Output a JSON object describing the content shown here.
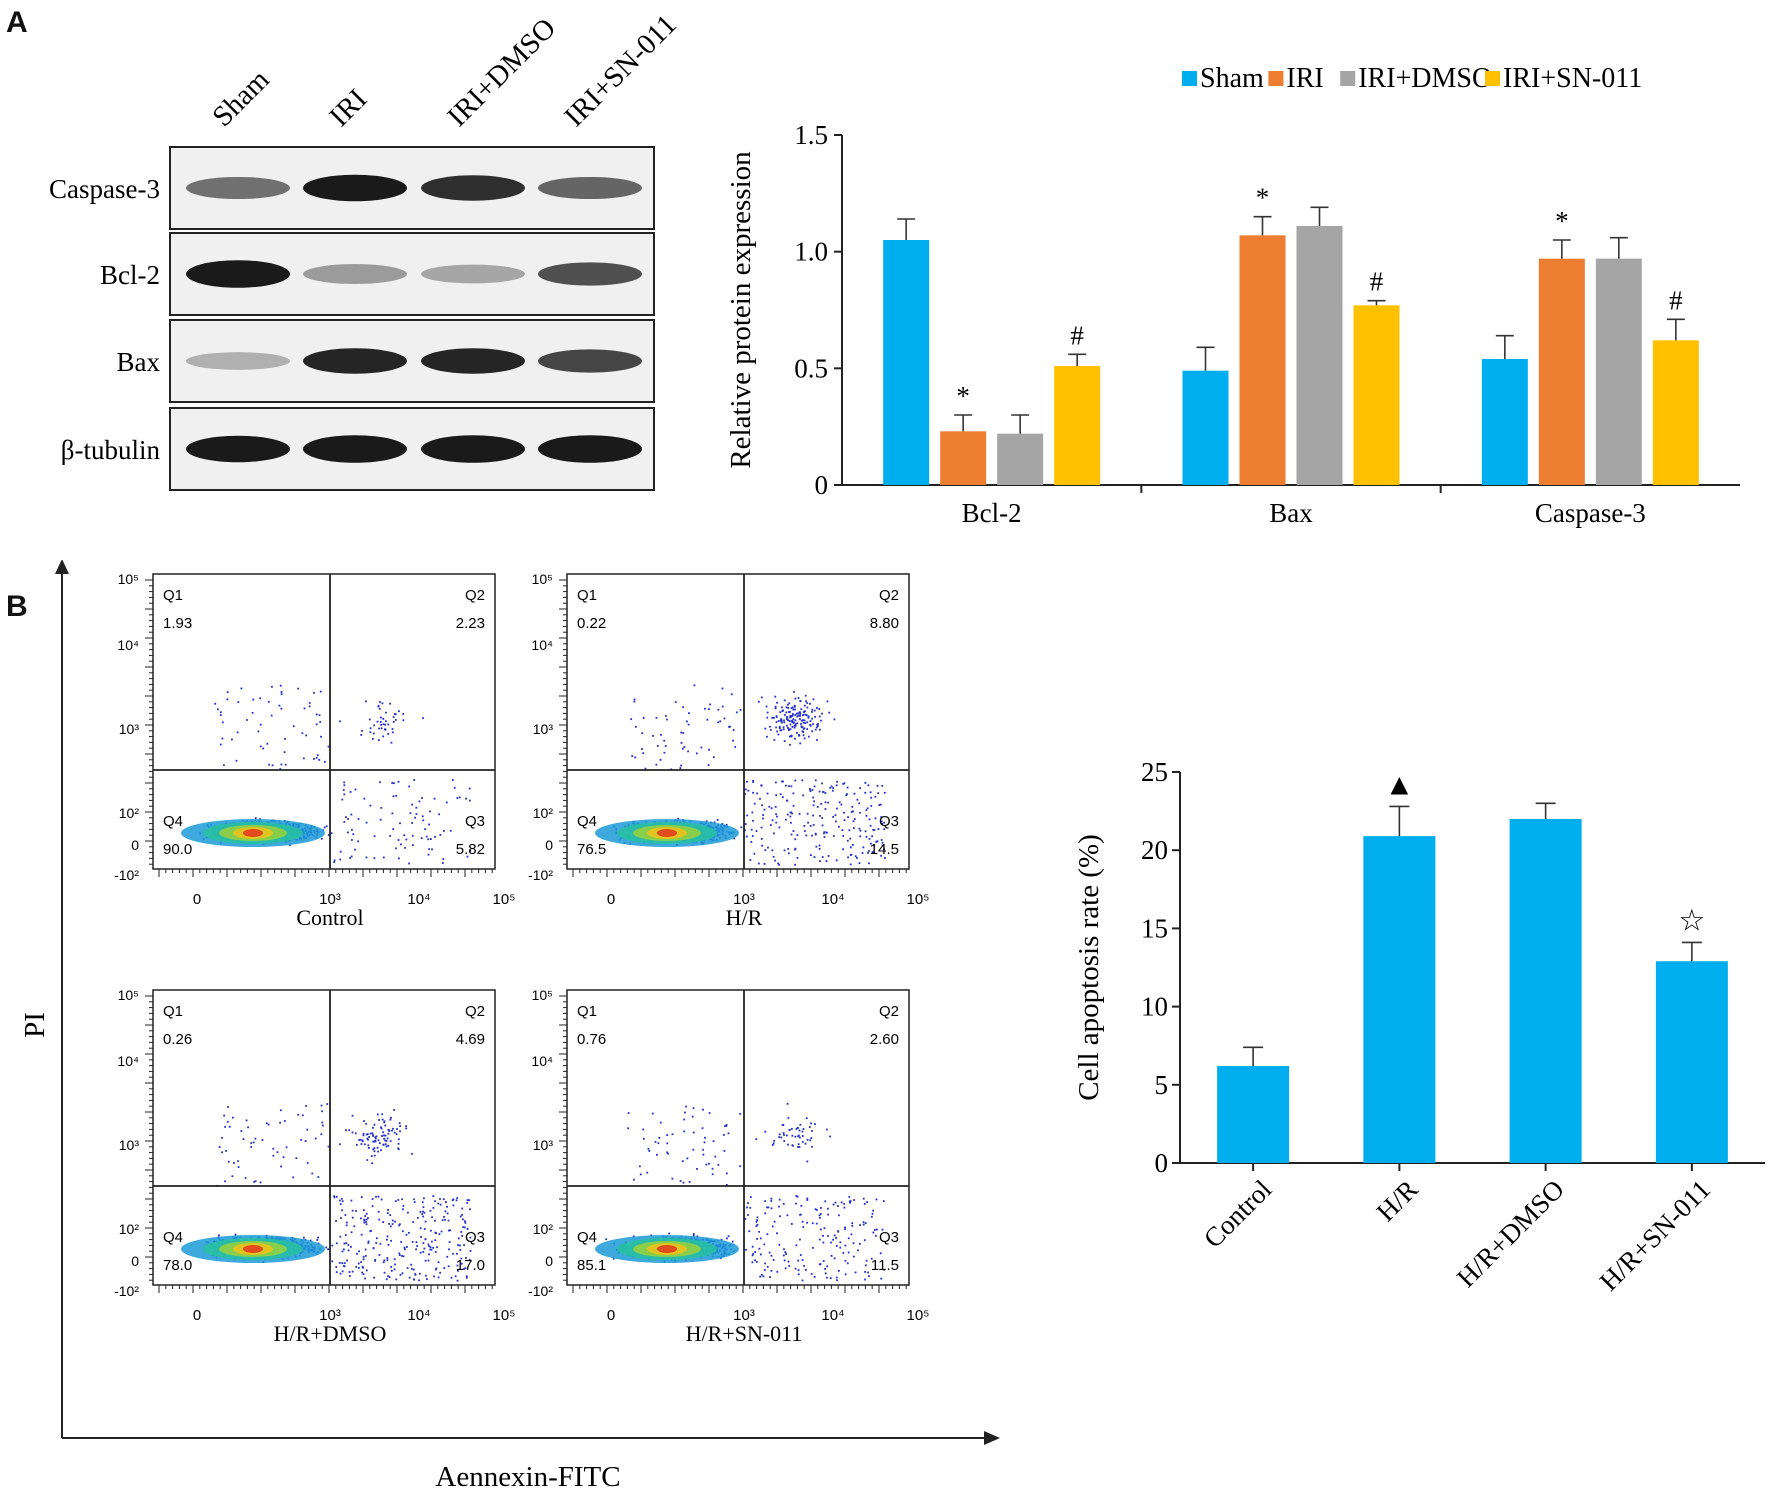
{
  "panels": {
    "a": "A",
    "b": "B"
  },
  "western_blot": {
    "lanes": [
      "Sham",
      "IRI",
      "IRI+DMSO",
      "IRI+SN-011"
    ],
    "rows": [
      {
        "label": "Caspase-3",
        "intensity": [
          0.55,
          0.95,
          0.85,
          0.6
        ],
        "thickness": [
          0.55,
          0.75,
          0.7,
          0.55
        ]
      },
      {
        "label": "Bcl-2",
        "intensity": [
          0.95,
          0.35,
          0.3,
          0.7
        ],
        "thickness": [
          0.8,
          0.45,
          0.4,
          0.6
        ]
      },
      {
        "label": "Bax",
        "intensity": [
          0.25,
          0.9,
          0.9,
          0.75
        ],
        "thickness": [
          0.35,
          0.7,
          0.7,
          0.6
        ]
      },
      {
        "label": "β-tubulin",
        "intensity": [
          0.95,
          0.95,
          0.95,
          0.95
        ],
        "thickness": [
          0.75,
          0.8,
          0.8,
          0.8
        ]
      }
    ]
  },
  "chart_data": [
    {
      "type": "bar",
      "ylabel": "Relative protein expression",
      "ylim": [
        0,
        1.5
      ],
      "yticks": [
        "0",
        "0.5",
        "1.0",
        "1.5"
      ],
      "categories": [
        "Bcl-2",
        "Bax",
        "Caspase-3"
      ],
      "legend_position": "top",
      "series": [
        {
          "name": "Sham",
          "color": "#00AEEF",
          "values": [
            1.05,
            0.49,
            0.54
          ],
          "errors": [
            0.09,
            0.1,
            0.1
          ],
          "marks": [
            "",
            "",
            ""
          ]
        },
        {
          "name": "IRI",
          "color": "#ED7D31",
          "values": [
            0.23,
            1.07,
            0.97
          ],
          "errors": [
            0.07,
            0.08,
            0.08
          ],
          "marks": [
            "*",
            "*",
            "*"
          ]
        },
        {
          "name": "IRI+DMSO",
          "color": "#A5A5A5",
          "values": [
            0.22,
            1.11,
            0.97
          ],
          "errors": [
            0.08,
            0.08,
            0.09
          ],
          "marks": [
            "",
            "",
            ""
          ]
        },
        {
          "name": "IRI+SN-011",
          "color": "#FFC000",
          "values": [
            0.51,
            0.77,
            0.62
          ],
          "errors": [
            0.05,
            0.02,
            0.09
          ],
          "marks": [
            "#",
            "#",
            "#"
          ]
        }
      ]
    },
    {
      "type": "bar",
      "ylabel": "Cell apoptosis rate (%)",
      "ylim": [
        0,
        25
      ],
      "yticks": [
        "0",
        "5",
        "10",
        "15",
        "20",
        "25"
      ],
      "categories": [
        "Control",
        "H/R",
        "H/R+DMSO",
        "H/R+SN-011"
      ],
      "series": [
        {
          "color": "#00AEEF",
          "values": [
            6.2,
            20.9,
            22.0,
            12.9
          ],
          "errors": [
            1.2,
            1.9,
            1.0,
            1.2
          ],
          "marks": [
            "",
            "▲",
            "",
            "☆"
          ]
        }
      ]
    }
  ],
  "flow_cytometry": {
    "y_axis_label": "PI",
    "x_axis_label": "Aennexin-FITC",
    "x_ticks": [
      "0",
      "10³",
      "10⁴",
      "10⁵"
    ],
    "y_ticks": [
      "10⁵",
      "10⁴",
      "10³",
      "10²",
      "0",
      "-10²"
    ],
    "plots": [
      {
        "title": "Control",
        "q1": "1.93",
        "q2": "2.23",
        "q3": "5.82",
        "q4": "90.0"
      },
      {
        "title": "H/R",
        "q1": "0.22",
        "q2": "8.80",
        "q3": "14.5",
        "q4": "76.5"
      },
      {
        "title": "H/R+DMSO",
        "q1": "0.26",
        "q2": "4.69",
        "q3": "17.0",
        "q4": "78.0"
      },
      {
        "title": "H/R+SN-011",
        "q1": "0.76",
        "q2": "2.60",
        "q3": "11.5",
        "q4": "85.1"
      }
    ],
    "quadrant_names": [
      "Q1",
      "Q2",
      "Q3",
      "Q4"
    ]
  }
}
